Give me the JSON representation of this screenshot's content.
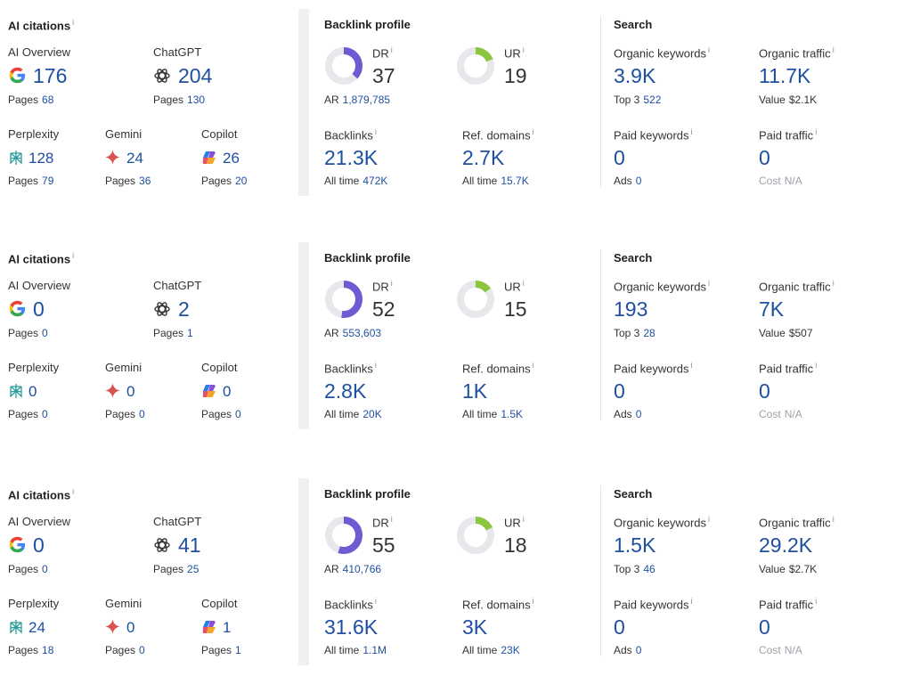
{
  "labels": {
    "ai_citations": "AI citations",
    "ai_overview": "AI Overview",
    "chatgpt": "ChatGPT",
    "perplexity": "Perplexity",
    "gemini": "Gemini",
    "copilot": "Copilot",
    "pages": "Pages",
    "backlink_profile": "Backlink profile",
    "dr": "DR",
    "ur": "UR",
    "ar": "AR",
    "backlinks": "Backlinks",
    "ref_domains": "Ref. domains",
    "all_time": "All time",
    "search": "Search",
    "organic_keywords": "Organic keywords",
    "organic_traffic": "Organic traffic",
    "top3": "Top 3",
    "value": "Value",
    "paid_keywords": "Paid keywords",
    "paid_traffic": "Paid traffic",
    "ads": "Ads",
    "cost": "Cost",
    "info": "i"
  },
  "colors": {
    "accent_blue": "#1f4fa0",
    "dr_purple": "#6e5bd2",
    "ur_green": "#8cc63f",
    "donut_track": "#e6e8eb"
  },
  "cards": [
    {
      "ai": {
        "overview": "176",
        "overview_pages": "68",
        "chatgpt": "204",
        "chatgpt_pages": "130",
        "perplexity": "128",
        "perplexity_pages": "79",
        "gemini": "24",
        "gemini_pages": "36",
        "copilot": "26",
        "copilot_pages": "20"
      },
      "backlink": {
        "dr": "37",
        "dr_fraction": 0.37,
        "ur": "19",
        "ur_fraction": 0.19,
        "ar": "1,879,785",
        "backlinks": "21.3K",
        "backlinks_all_time": "472K",
        "ref_domains": "2.7K",
        "ref_domains_all_time": "15.7K"
      },
      "search": {
        "organic_keywords": "3.9K",
        "top3": "522",
        "organic_traffic": "11.7K",
        "value": "$2.1K",
        "paid_keywords": "0",
        "ads": "0",
        "paid_traffic": "0",
        "cost": "N/A"
      }
    },
    {
      "ai": {
        "overview": "0",
        "overview_pages": "0",
        "chatgpt": "2",
        "chatgpt_pages": "1",
        "perplexity": "0",
        "perplexity_pages": "0",
        "gemini": "0",
        "gemini_pages": "0",
        "copilot": "0",
        "copilot_pages": "0"
      },
      "backlink": {
        "dr": "52",
        "dr_fraction": 0.52,
        "ur": "15",
        "ur_fraction": 0.15,
        "ar": "553,603",
        "backlinks": "2.8K",
        "backlinks_all_time": "20K",
        "ref_domains": "1K",
        "ref_domains_all_time": "1.5K"
      },
      "search": {
        "organic_keywords": "193",
        "top3": "28",
        "organic_traffic": "7K",
        "value": "$507",
        "paid_keywords": "0",
        "ads": "0",
        "paid_traffic": "0",
        "cost": "N/A"
      }
    },
    {
      "ai": {
        "overview": "0",
        "overview_pages": "0",
        "chatgpt": "41",
        "chatgpt_pages": "25",
        "perplexity": "24",
        "perplexity_pages": "18",
        "gemini": "0",
        "gemini_pages": "0",
        "copilot": "1",
        "copilot_pages": "1"
      },
      "backlink": {
        "dr": "55",
        "dr_fraction": 0.55,
        "ur": "18",
        "ur_fraction": 0.18,
        "ar": "410,766",
        "backlinks": "31.6K",
        "backlinks_all_time": "1.1M",
        "ref_domains": "3K",
        "ref_domains_all_time": "23K"
      },
      "search": {
        "organic_keywords": "1.5K",
        "top3": "46",
        "organic_traffic": "29.2K",
        "value": "$2.7K",
        "paid_keywords": "0",
        "ads": "0",
        "paid_traffic": "0",
        "cost": "N/A"
      }
    }
  ]
}
